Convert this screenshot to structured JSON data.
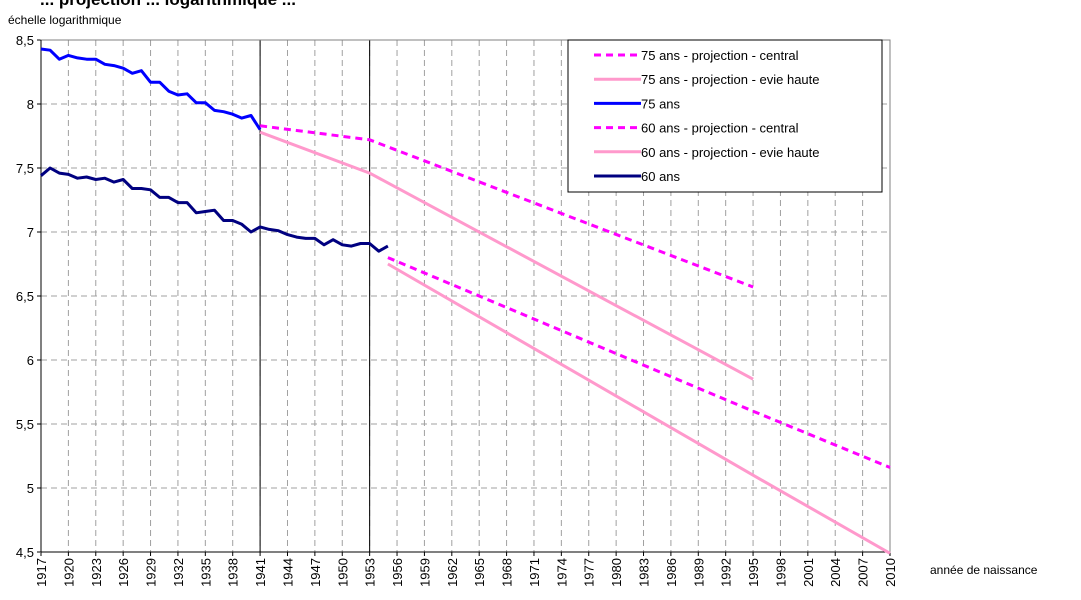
{
  "title": "... projection ... logarithmique ...",
  "chart_data": {
    "type": "line",
    "title": "",
    "ylabel": "échelle logarithmique",
    "xlabel": "année de naissance",
    "xlim": [
      1917,
      2010
    ],
    "ylim": [
      4.5,
      8.5
    ],
    "yticks": [
      4.5,
      5,
      5.5,
      6,
      6.5,
      7,
      7.5,
      8,
      8.5
    ],
    "ytick_labels": [
      "4,5",
      "5",
      "5,5",
      "6",
      "6,5",
      "7",
      "7,5",
      "8",
      "8,5"
    ],
    "xticks": [
      1917,
      1920,
      1923,
      1926,
      1929,
      1932,
      1935,
      1938,
      1941,
      1944,
      1947,
      1950,
      1953,
      1956,
      1959,
      1962,
      1965,
      1968,
      1971,
      1974,
      1977,
      1980,
      1983,
      1986,
      1989,
      1992,
      1995,
      1998,
      2001,
      2004,
      2007,
      2010
    ],
    "vlines": [
      1941,
      1953
    ],
    "grid": true,
    "legend_position": "top-right",
    "series": [
      {
        "name": "75 ans - projection - central",
        "color": "#ff00ff",
        "style": "dashed",
        "x": [
          1941,
          1953,
          1995
        ],
        "values": [
          7.83,
          7.72,
          6.57
        ]
      },
      {
        "name": "75 ans - projection - evie haute",
        "color": "#ff99cc",
        "style": "solid",
        "x": [
          1941,
          1953,
          1995
        ],
        "values": [
          7.78,
          7.46,
          5.85
        ]
      },
      {
        "name": "75 ans",
        "color": "#0000ff",
        "style": "solid",
        "x": [
          1917,
          1918,
          1919,
          1920,
          1921,
          1922,
          1923,
          1924,
          1925,
          1926,
          1927,
          1928,
          1929,
          1930,
          1931,
          1932,
          1933,
          1934,
          1935,
          1936,
          1937,
          1938,
          1939,
          1940,
          1941
        ],
        "values": [
          8.43,
          8.42,
          8.35,
          8.38,
          8.36,
          8.35,
          8.35,
          8.31,
          8.3,
          8.28,
          8.24,
          8.26,
          8.17,
          8.17,
          8.1,
          8.07,
          8.08,
          8.01,
          8.01,
          7.95,
          7.94,
          7.92,
          7.89,
          7.91,
          7.8
        ]
      },
      {
        "name": "60 ans - projection - central",
        "color": "#ff00ff",
        "style": "dashed",
        "x": [
          1955,
          1995,
          2010
        ],
        "values": [
          6.8,
          5.6,
          5.16
        ]
      },
      {
        "name": "60 ans - projection - evie haute",
        "color": "#ff99cc",
        "style": "solid",
        "x": [
          1955,
          1995,
          2010
        ],
        "values": [
          6.75,
          5.1,
          4.49
        ]
      },
      {
        "name": "60 ans",
        "color": "#000080",
        "style": "solid",
        "x": [
          1917,
          1918,
          1919,
          1920,
          1921,
          1922,
          1923,
          1924,
          1925,
          1926,
          1927,
          1928,
          1929,
          1930,
          1931,
          1932,
          1933,
          1934,
          1935,
          1936,
          1937,
          1938,
          1939,
          1940,
          1941,
          1942,
          1943,
          1944,
          1945,
          1946,
          1947,
          1948,
          1949,
          1950,
          1951,
          1952,
          1953,
          1954,
          1955
        ],
        "values": [
          7.44,
          7.5,
          7.46,
          7.45,
          7.42,
          7.43,
          7.41,
          7.42,
          7.39,
          7.41,
          7.34,
          7.34,
          7.33,
          7.27,
          7.27,
          7.23,
          7.23,
          7.15,
          7.16,
          7.17,
          7.09,
          7.09,
          7.06,
          7.0,
          7.04,
          7.02,
          7.01,
          6.98,
          6.96,
          6.95,
          6.95,
          6.9,
          6.94,
          6.9,
          6.89,
          6.91,
          6.91,
          6.85,
          6.89
        ]
      }
    ]
  }
}
